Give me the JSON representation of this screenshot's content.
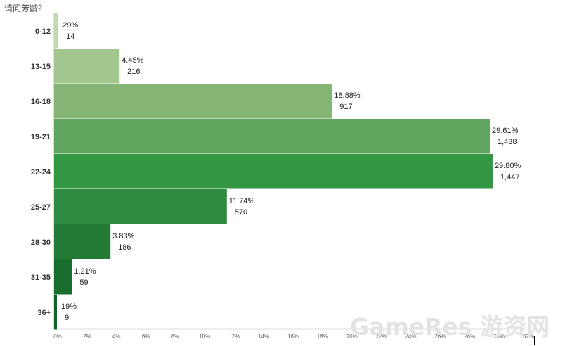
{
  "page": {
    "title": "请问芳龄？",
    "watermark": "GameRes 游资网"
  },
  "chart_data": {
    "type": "bar",
    "orientation": "horizontal",
    "title": "请问芳龄？",
    "categories": [
      "0-12",
      "13-15",
      "16-18",
      "19-21",
      "22-24",
      "25-27",
      "28-30",
      "31-35",
      "36+"
    ],
    "values": [
      0.29,
      4.45,
      18.88,
      29.61,
      29.8,
      11.74,
      3.83,
      1.21,
      0.19
    ],
    "percent_labels": [
      ".29%",
      "4.45%",
      "18.88%",
      "29.61%",
      "29.80%",
      "11.74%",
      "3.83%",
      "1.21%",
      ".19%"
    ],
    "counts": [
      "14",
      "216",
      "917",
      "1,438",
      "1,447",
      "570",
      "186",
      "59",
      "9"
    ],
    "xlim": [
      0,
      32
    ],
    "xticks": [
      "0%",
      "2%",
      "4%",
      "6%",
      "8%",
      "10%",
      "12%",
      "14%",
      "16%",
      "18%",
      "20%",
      "22%",
      "24%",
      "26%",
      "28%",
      "30%",
      "32%"
    ],
    "bar_colors": [
      "#c2d9b3",
      "#a3c58e",
      "#84b574",
      "#5fa55d",
      "#339642",
      "#2e8a3e",
      "#237a35",
      "#196e2e",
      "#10622a"
    ],
    "grid": false,
    "legend": "none",
    "xlabel": "",
    "ylabel": ""
  }
}
